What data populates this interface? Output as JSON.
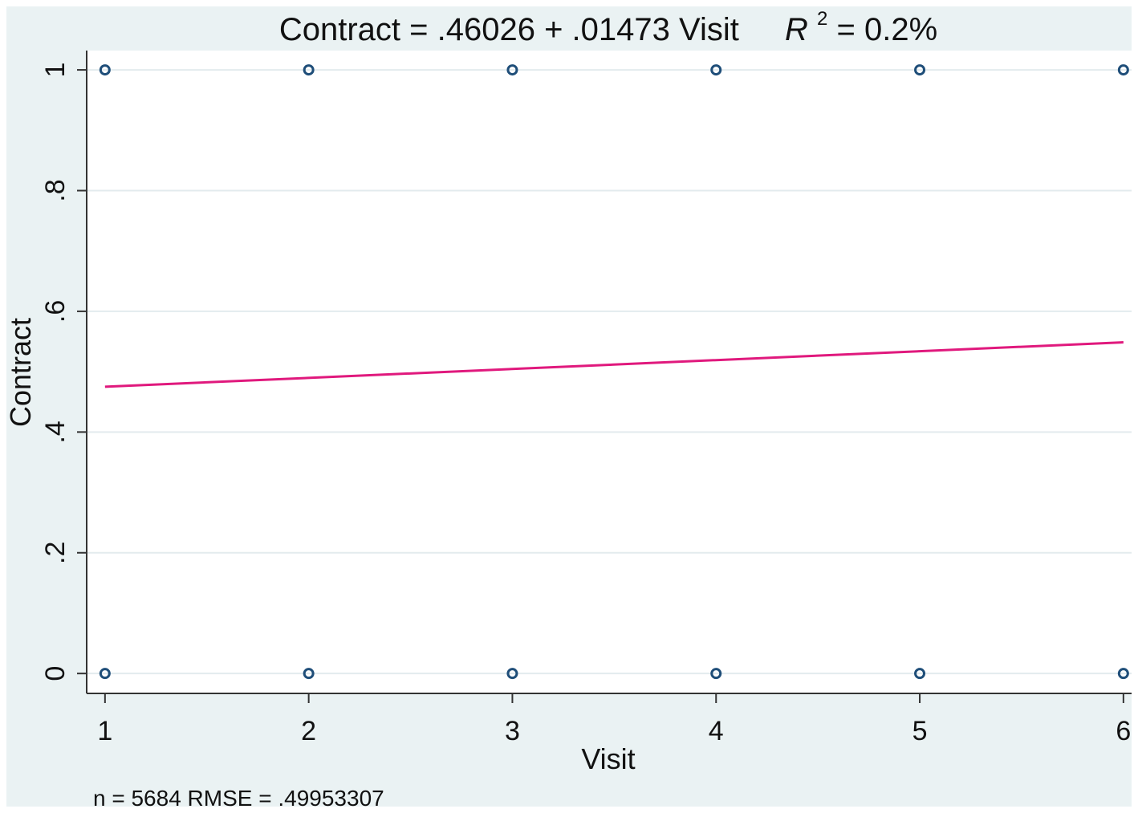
{
  "chart_data": {
    "type": "scatter",
    "title": {
      "prefix": "Contract = .46026 + .01473 Visit",
      "r2_label": "R",
      "r2_superscript": "2",
      "r2_value": " = 0.2%"
    },
    "xlabel": "Visit",
    "ylabel": "Contract",
    "x_ticks": [
      1,
      2,
      3,
      4,
      5,
      6
    ],
    "x_tick_labels": [
      "1",
      "2",
      "3",
      "4",
      "5",
      "6"
    ],
    "y_ticks": [
      0,
      0.2,
      0.4,
      0.6,
      0.8,
      1
    ],
    "y_tick_labels": [
      "0",
      ".2",
      ".4",
      ".6",
      ".8",
      "1"
    ],
    "xlim": [
      0.91,
      6.04
    ],
    "ylim": [
      -0.033,
      1.032
    ],
    "grid": true,
    "series": [
      {
        "kind": "points",
        "marker": "hollow-circle",
        "color": "#1f4e79",
        "points": [
          {
            "x": 1,
            "y": 1
          },
          {
            "x": 2,
            "y": 1
          },
          {
            "x": 3,
            "y": 1
          },
          {
            "x": 4,
            "y": 1
          },
          {
            "x": 5,
            "y": 1
          },
          {
            "x": 6,
            "y": 1
          },
          {
            "x": 1,
            "y": 0
          },
          {
            "x": 2,
            "y": 0
          },
          {
            "x": 3,
            "y": 0
          },
          {
            "x": 4,
            "y": 0
          },
          {
            "x": 5,
            "y": 0
          },
          {
            "x": 6,
            "y": 0
          }
        ]
      },
      {
        "kind": "fit-line",
        "color": "#e0197d",
        "intercept": 0.46026,
        "slope": 0.01473,
        "x_range": [
          1,
          6
        ]
      }
    ],
    "note": "n = 5684     RMSE =  .49953307"
  },
  "colors": {
    "frame_background": "#eaf2f3",
    "plot_background": "#ffffff",
    "gridline": "#e3ebee",
    "axis": "#333333",
    "marker": "#1f4e79",
    "fit_line": "#e0197d"
  }
}
